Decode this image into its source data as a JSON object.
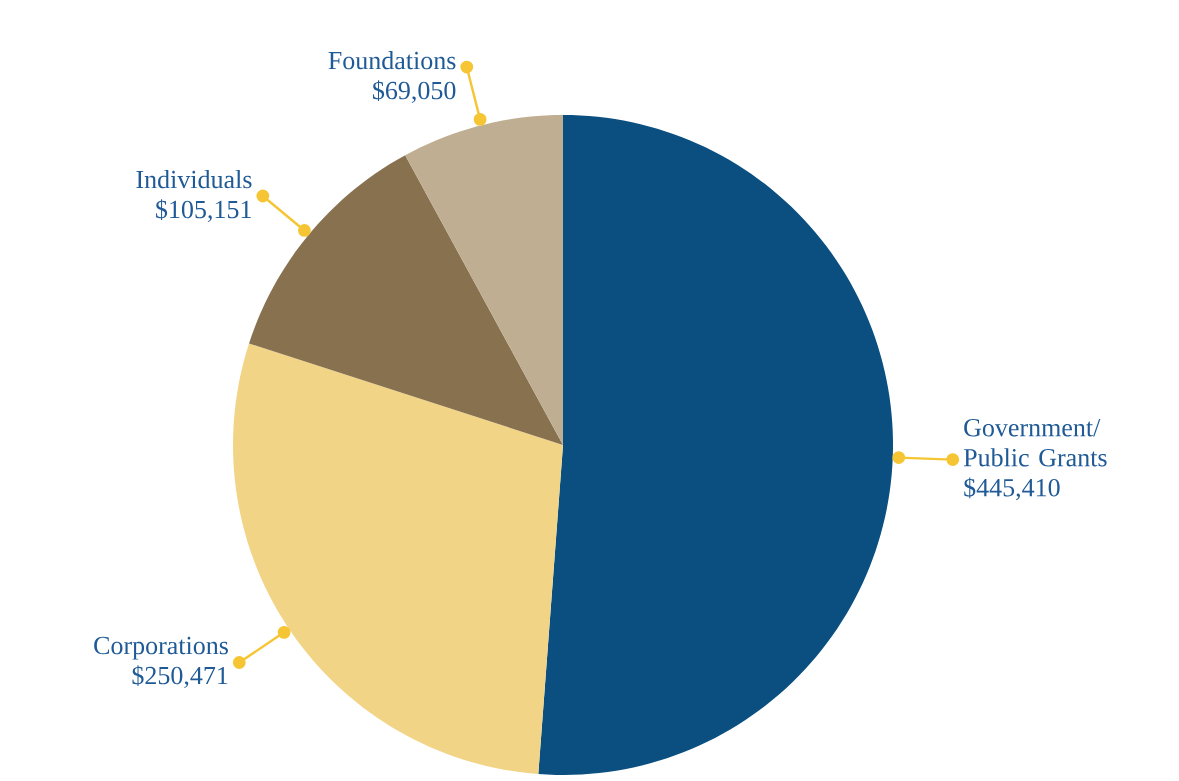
{
  "chart_data": {
    "type": "pie",
    "categories": [
      "Government/ Public Grants",
      "Corporations",
      "Individuals",
      "Foundations"
    ],
    "values": [
      445410,
      250471,
      105151,
      69050
    ],
    "value_labels": [
      "$445,410",
      "$250,471",
      "$105,151",
      "$69,050"
    ],
    "colors": [
      "#0a4f80",
      "#f2d486",
      "#87714f",
      "#bfae92"
    ]
  }
}
